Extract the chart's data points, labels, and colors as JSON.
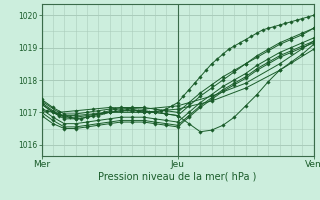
{
  "background_color": "#cceedd",
  "grid_color": "#aaccbb",
  "line_color": "#1a5c2a",
  "marker_color": "#1a5c2a",
  "title": "Pression niveau de la mer( hPa )",
  "x_tick_labels": [
    "Mer",
    "Jeu",
    "Ven"
  ],
  "ylim": [
    1015.65,
    1020.35
  ],
  "y_ticks": [
    1016,
    1017,
    1018,
    1019,
    1020
  ],
  "series": [
    {
      "x": [
        0,
        2,
        4,
        6,
        8,
        10,
        12,
        14,
        16,
        18,
        20,
        22,
        24,
        26,
        28,
        30,
        32,
        34,
        36,
        38,
        40,
        42,
        44,
        46,
        48,
        50,
        52,
        54,
        56,
        58,
        60,
        62,
        64,
        66,
        68,
        70,
        72,
        74,
        76,
        78,
        80,
        82,
        84,
        86,
        88,
        90,
        92,
        94,
        96
      ],
      "y": [
        1017.1,
        1017.05,
        1017.0,
        1016.95,
        1016.9,
        1016.85,
        1016.8,
        1016.8,
        1016.85,
        1016.9,
        1016.95,
        1017.0,
        1017.05,
        1017.1,
        1017.1,
        1017.1,
        1017.1,
        1017.05,
        1017.0,
        1017.0,
        1017.0,
        1017.05,
        1017.1,
        1017.2,
        1017.3,
        1017.5,
        1017.7,
        1017.9,
        1018.1,
        1018.3,
        1018.5,
        1018.65,
        1018.8,
        1018.95,
        1019.05,
        1019.15,
        1019.25,
        1019.35,
        1019.45,
        1019.55,
        1019.6,
        1019.65,
        1019.7,
        1019.75,
        1019.8,
        1019.85,
        1019.9,
        1019.95,
        1020.0
      ]
    },
    {
      "x": [
        0,
        4,
        8,
        12,
        16,
        20,
        24,
        28,
        32,
        36,
        40,
        44,
        48,
        52,
        56,
        60,
        64,
        68,
        72,
        76,
        80,
        84,
        88,
        92,
        96
      ],
      "y": [
        1017.25,
        1017.0,
        1016.8,
        1016.8,
        1016.85,
        1016.9,
        1017.0,
        1017.05,
        1017.05,
        1017.05,
        1017.0,
        1016.95,
        1016.9,
        1017.2,
        1017.5,
        1017.75,
        1018.0,
        1018.25,
        1018.5,
        1018.7,
        1018.9,
        1019.1,
        1019.25,
        1019.4,
        1019.6
      ]
    },
    {
      "x": [
        0,
        4,
        8,
        12,
        16,
        20,
        24,
        28,
        32,
        36,
        40,
        44,
        48,
        52,
        56,
        60,
        64,
        68,
        72,
        76,
        80,
        84,
        88,
        92,
        96
      ],
      "y": [
        1017.1,
        1016.85,
        1016.65,
        1016.65,
        1016.7,
        1016.75,
        1016.8,
        1016.85,
        1016.85,
        1016.85,
        1016.8,
        1016.75,
        1016.7,
        1017.0,
        1017.3,
        1017.55,
        1017.8,
        1018.0,
        1018.2,
        1018.45,
        1018.65,
        1018.85,
        1019.0,
        1019.15,
        1019.3
      ]
    },
    {
      "x": [
        0,
        4,
        8,
        12,
        16,
        20,
        24,
        28,
        32,
        36,
        40,
        44,
        48,
        52,
        56,
        60,
        64,
        68,
        72,
        76,
        80,
        84,
        88,
        92,
        96
      ],
      "y": [
        1017.0,
        1016.75,
        1016.55,
        1016.55,
        1016.6,
        1016.65,
        1016.7,
        1016.75,
        1016.75,
        1016.75,
        1016.7,
        1016.65,
        1016.6,
        1016.9,
        1017.2,
        1017.45,
        1017.7,
        1017.9,
        1018.1,
        1018.35,
        1018.55,
        1018.75,
        1018.9,
        1019.05,
        1019.2
      ]
    },
    {
      "x": [
        0,
        4,
        8,
        12,
        16,
        20,
        24,
        28,
        32,
        36,
        40,
        44,
        48,
        52,
        56,
        60,
        64,
        68,
        72,
        76,
        80,
        84,
        88,
        92,
        96
      ],
      "y": [
        1016.9,
        1016.65,
        1016.5,
        1016.5,
        1016.55,
        1016.6,
        1016.65,
        1016.7,
        1016.7,
        1016.7,
        1016.65,
        1016.6,
        1016.55,
        1016.85,
        1017.15,
        1017.4,
        1017.65,
        1017.85,
        1018.05,
        1018.3,
        1018.5,
        1018.7,
        1018.85,
        1019.0,
        1019.15
      ]
    },
    {
      "x": [
        0,
        4,
        8,
        12,
        16,
        20,
        24,
        28,
        32,
        36,
        40,
        44,
        48,
        52,
        56,
        60,
        64,
        68,
        72,
        76,
        80,
        84,
        88,
        92,
        96
      ],
      "y": [
        1017.3,
        1017.05,
        1016.85,
        1016.85,
        1016.9,
        1016.95,
        1017.0,
        1017.05,
        1017.05,
        1017.05,
        1017.0,
        1016.95,
        1016.9,
        1016.65,
        1016.4,
        1016.45,
        1016.6,
        1016.85,
        1017.2,
        1017.55,
        1017.95,
        1018.3,
        1018.55,
        1018.8,
        1019.1
      ]
    },
    {
      "x": [
        0,
        6,
        12,
        18,
        24,
        36,
        48,
        60,
        72,
        84,
        96
      ],
      "y": [
        1017.35,
        1017.0,
        1017.05,
        1017.1,
        1017.15,
        1017.1,
        1017.2,
        1017.5,
        1017.9,
        1018.5,
        1019.2
      ]
    },
    {
      "x": [
        0,
        6,
        12,
        18,
        24,
        36,
        48,
        60,
        72,
        84,
        96
      ],
      "y": [
        1017.25,
        1016.9,
        1016.9,
        1016.95,
        1017.0,
        1017.0,
        1017.1,
        1017.35,
        1017.75,
        1018.3,
        1018.95
      ]
    },
    {
      "x": [
        0,
        4,
        8,
        12,
        16,
        20,
        24,
        28,
        32,
        36,
        40,
        44,
        48,
        52,
        56,
        60,
        64,
        68,
        72,
        76,
        80,
        84,
        88,
        92,
        96
      ],
      "y": [
        1017.4,
        1017.15,
        1016.95,
        1016.95,
        1017.0,
        1017.05,
        1017.1,
        1017.15,
        1017.15,
        1017.15,
        1017.1,
        1017.05,
        1017.0,
        1017.3,
        1017.6,
        1017.85,
        1018.1,
        1018.3,
        1018.5,
        1018.75,
        1018.95,
        1019.15,
        1019.3,
        1019.45,
        1019.6
      ]
    }
  ],
  "vline_x": [
    0,
    48,
    96
  ],
  "x_tick_pos": [
    0,
    48,
    96
  ],
  "x_max": 96
}
